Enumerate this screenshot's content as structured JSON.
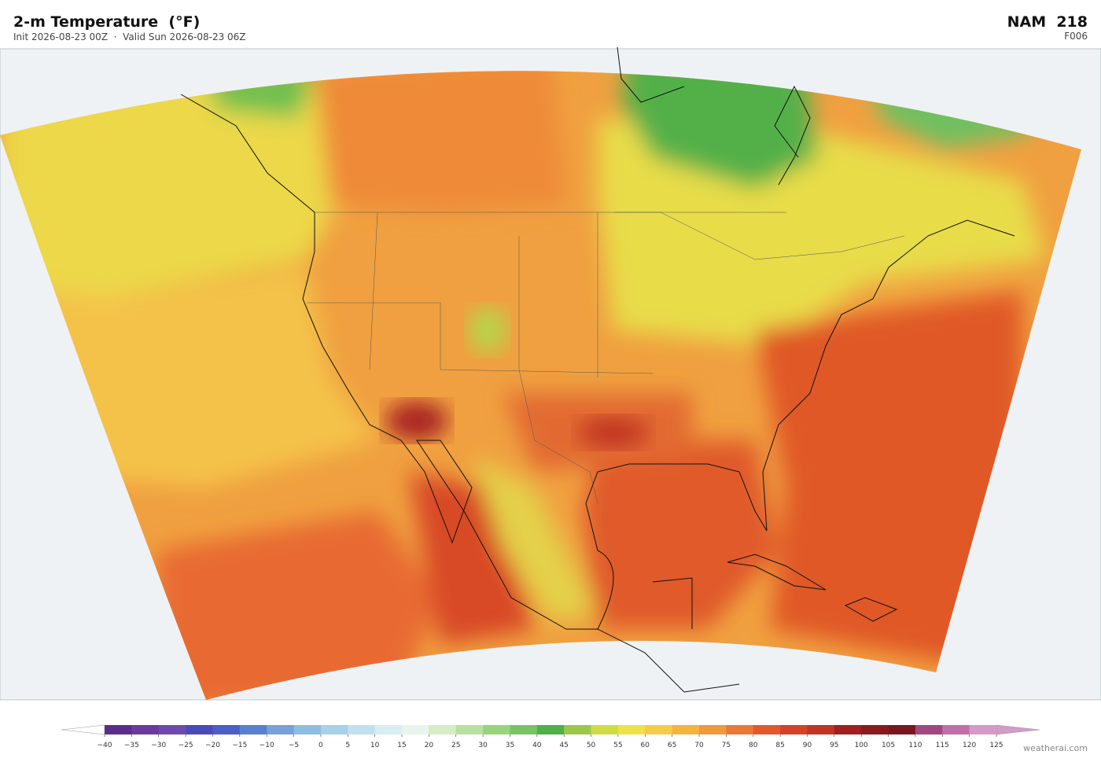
{
  "header": {
    "title": "2-m Temperature  (°F)",
    "subtitle": "Init 2026-08-23 00Z  ·  Valid Sun 2026-08-23 06Z",
    "model": "NAM  218",
    "forecast_hour": "F006"
  },
  "colorbar": {
    "ticks": [
      "−40",
      "−35",
      "−30",
      "−25",
      "−20",
      "−15",
      "−10",
      "−5",
      "0",
      "5",
      "10",
      "15",
      "20",
      "25",
      "30",
      "35",
      "40",
      "45",
      "50",
      "55",
      "60",
      "65",
      "70",
      "75",
      "80",
      "85",
      "90",
      "95",
      "100",
      "105",
      "110",
      "115",
      "120",
      "125"
    ],
    "colors": [
      "#5a2d8c",
      "#6a3a9c",
      "#6f4aae",
      "#4a4ab8",
      "#4c5ec8",
      "#5a7fd0",
      "#7aa0d8",
      "#8fbde0",
      "#a8d0e8",
      "#c0e0ee",
      "#d8eef2",
      "#e8f4ec",
      "#d5ecc4",
      "#b8e0a0",
      "#98d47e",
      "#78c462",
      "#4fb04a",
      "#9cc84a",
      "#d0dc44",
      "#eee24a",
      "#f4cc48",
      "#f4b440",
      "#f0983c",
      "#ec7838",
      "#e25a2c",
      "#d44228",
      "#c03424",
      "#a02020",
      "#8a1a1e",
      "#7a1620",
      "#a04880",
      "#c070a8",
      "#d49ac8"
    ],
    "under_color": "#ffffff",
    "over_color": "#d49ac8"
  },
  "watermark": "weatherai.com"
}
